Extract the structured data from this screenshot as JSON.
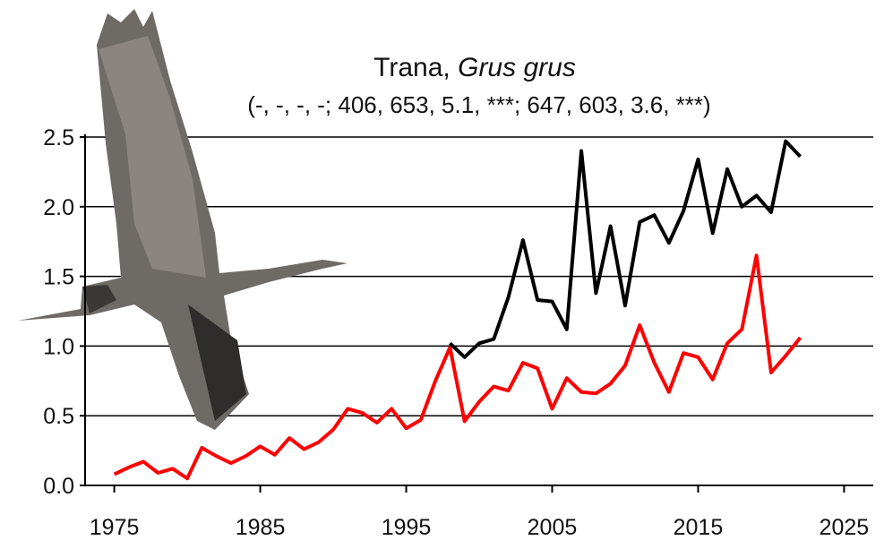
{
  "chart_data": {
    "type": "line",
    "title": "Trana,",
    "title_species": "Grus grus",
    "subtitle": "(-, -, -, -; 406, 653, 5.1, ***; 647, 603, 3.6, ***)",
    "x": [
      1975,
      1976,
      1977,
      1978,
      1979,
      1980,
      1981,
      1982,
      1983,
      1984,
      1985,
      1986,
      1987,
      1988,
      1989,
      1990,
      1991,
      1992,
      1993,
      1994,
      1995,
      1996,
      1997,
      1998,
      1999,
      2000,
      2001,
      2002,
      2003,
      2004,
      2005,
      2006,
      2007,
      2008,
      2009,
      2010,
      2011,
      2012,
      2013,
      2014,
      2015,
      2016,
      2017,
      2018,
      2019,
      2020,
      2021,
      2022
    ],
    "series": [
      {
        "color": "#ff0000",
        "values": [
          0.08,
          0.13,
          0.17,
          0.09,
          0.12,
          0.05,
          0.27,
          0.21,
          0.16,
          0.21,
          0.28,
          0.22,
          0.34,
          0.26,
          0.31,
          0.4,
          0.55,
          0.52,
          0.45,
          0.55,
          0.41,
          0.47,
          0.75,
          0.99,
          0.46,
          0.6,
          0.71,
          0.68,
          0.88,
          0.84,
          0.55,
          0.77,
          0.67,
          0.66,
          0.73,
          0.86,
          1.15,
          0.88,
          0.67,
          0.95,
          0.92,
          0.76,
          1.02,
          1.12,
          1.65,
          0.81,
          0.93,
          1.06
        ]
      },
      {
        "color": "#000000",
        "values": [
          null,
          null,
          null,
          null,
          null,
          null,
          null,
          null,
          null,
          null,
          null,
          null,
          null,
          null,
          null,
          null,
          null,
          null,
          null,
          null,
          null,
          null,
          null,
          1.02,
          0.92,
          1.02,
          1.05,
          1.35,
          1.76,
          1.33,
          1.32,
          1.12,
          2.4,
          1.38,
          1.86,
          1.29,
          1.89,
          1.94,
          1.74,
          1.97,
          2.34,
          1.81,
          2.27,
          2.0,
          2.08,
          1.96,
          2.47,
          2.36
        ]
      }
    ],
    "xlim": [
      1973,
      2027
    ],
    "xticks": [
      1975,
      1985,
      1995,
      2005,
      2015,
      2025
    ],
    "ylim": [
      0,
      2.5
    ],
    "yticks": [
      {
        "value": 0,
        "label": "0.0"
      },
      0.5,
      {
        "value": 1,
        "label": "1.0"
      },
      1.5,
      {
        "value": 2,
        "label": "2.0"
      },
      2.5
    ],
    "grid": true
  }
}
